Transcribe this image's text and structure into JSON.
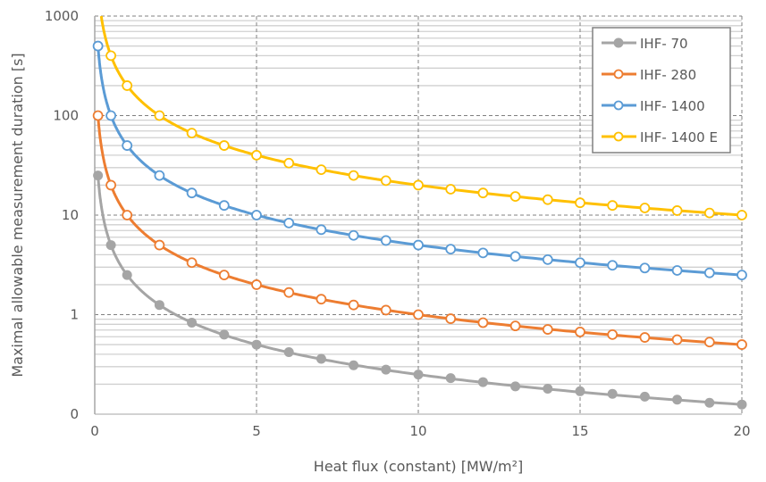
{
  "chart_data": {
    "type": "line",
    "title": "",
    "xlabel": "Heat flux (constant) [MW/m²]",
    "ylabel": "Maximal allowable measurement duration [s]",
    "xlim": [
      0,
      20
    ],
    "ylim": [
      0.1,
      1000
    ],
    "y_scale": "log",
    "x_ticks": [
      0,
      5,
      10,
      15,
      20
    ],
    "x_tick_labels": [
      "0",
      "5",
      "10",
      "15",
      "20"
    ],
    "y_ticks": [
      0.1,
      1,
      10,
      100,
      1000
    ],
    "y_tick_labels": [
      "0",
      "1",
      "10",
      "100",
      "1000"
    ],
    "grid": true,
    "legend_position": "top-right",
    "series": [
      {
        "name": "IHF- 70",
        "color": "#A5A5A5",
        "marker": "filled-circle",
        "x": [
          0.1,
          0.5,
          1,
          2,
          3,
          4,
          5,
          6,
          7,
          8,
          9,
          10,
          11,
          12,
          13,
          14,
          15,
          16,
          17,
          18,
          19,
          20
        ],
        "y": [
          25,
          5,
          2.5,
          1.25,
          0.83,
          0.63,
          0.5,
          0.42,
          0.36,
          0.31,
          0.28,
          0.25,
          0.23,
          0.21,
          0.19,
          0.18,
          0.17,
          0.16,
          0.15,
          0.14,
          0.13,
          0.125
        ]
      },
      {
        "name": "IHF- 280",
        "color": "#ED7D31",
        "marker": "open-circle",
        "x": [
          0.1,
          0.5,
          1,
          2,
          3,
          4,
          5,
          6,
          7,
          8,
          9,
          10,
          11,
          12,
          13,
          14,
          15,
          16,
          17,
          18,
          19,
          20
        ],
        "y": [
          100,
          20,
          10,
          5,
          3.33,
          2.5,
          2,
          1.67,
          1.43,
          1.25,
          1.11,
          1,
          0.91,
          0.83,
          0.77,
          0.71,
          0.67,
          0.63,
          0.59,
          0.56,
          0.53,
          0.5
        ]
      },
      {
        "name": "IHF- 1400",
        "color": "#5B9BD5",
        "marker": "open-circle",
        "x": [
          0.1,
          0.5,
          1,
          2,
          3,
          4,
          5,
          6,
          7,
          8,
          9,
          10,
          11,
          12,
          13,
          14,
          15,
          16,
          17,
          18,
          19,
          20
        ],
        "y": [
          500,
          100,
          50,
          25,
          16.7,
          12.5,
          10,
          8.33,
          7.14,
          6.25,
          5.56,
          5,
          4.55,
          4.17,
          3.85,
          3.57,
          3.33,
          3.13,
          2.94,
          2.78,
          2.63,
          2.5
        ]
      },
      {
        "name": "IHF- 1400 E",
        "color": "#FFC000",
        "marker": "open-circle",
        "x": [
          0.5,
          1,
          2,
          3,
          4,
          5,
          6,
          7,
          8,
          9,
          10,
          11,
          12,
          13,
          14,
          15,
          16,
          17,
          18,
          19,
          20
        ],
        "y": [
          400,
          200,
          100,
          66.7,
          50,
          40,
          33.3,
          28.6,
          25,
          22.2,
          20,
          18.2,
          16.7,
          15.4,
          14.3,
          13.3,
          12.5,
          11.8,
          11.1,
          10.5,
          10
        ]
      }
    ]
  }
}
